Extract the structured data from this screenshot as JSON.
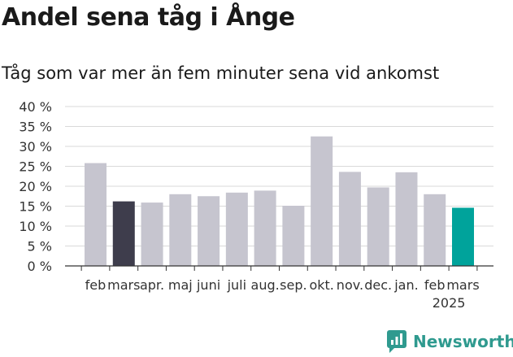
{
  "title": "Andel sena tåg i Ånge",
  "subtitle": "Tåg som var mer än fem minuter sena vid ankomst",
  "brand": {
    "name": "Newsworthy",
    "icon": "newsworthy-logo-icon",
    "color": "#2f9a8f"
  },
  "colors": {
    "bar_default": "#c6c5cf",
    "bar_highlight_dark": "#3e3d4c",
    "bar_highlight_accent": "#00a39b",
    "grid": "#d9d9d9",
    "axis": "#333333"
  },
  "chart_data": {
    "type": "bar",
    "categories": [
      "feb",
      "mars",
      "apr.",
      "maj",
      "juni",
      "juli",
      "aug.",
      "sep.",
      "okt.",
      "nov.",
      "dec.",
      "jan.",
      "feb",
      "mars"
    ],
    "values": [
      25.8,
      16.2,
      15.9,
      18.0,
      17.5,
      18.4,
      18.9,
      15.1,
      32.5,
      23.6,
      19.7,
      23.5,
      18.0,
      14.6
    ],
    "highlight": {
      "1": "dark",
      "13": "accent"
    },
    "year_labels": [
      {
        "index": 12.5,
        "label": "2025"
      }
    ],
    "yticks": [
      0,
      5,
      10,
      15,
      20,
      25,
      30,
      35,
      40
    ],
    "ytick_labels": [
      "0 %",
      "5 %",
      "10 %",
      "15 %",
      "20 %",
      "25 %",
      "30 %",
      "35 %",
      "40 %"
    ],
    "ylim": [
      0,
      40
    ],
    "grid": true,
    "title": "Andel sena tåg i Ånge",
    "subtitle": "Tåg som var mer än fem minuter sena vid ankomst",
    "xlabel": "",
    "ylabel": ""
  }
}
